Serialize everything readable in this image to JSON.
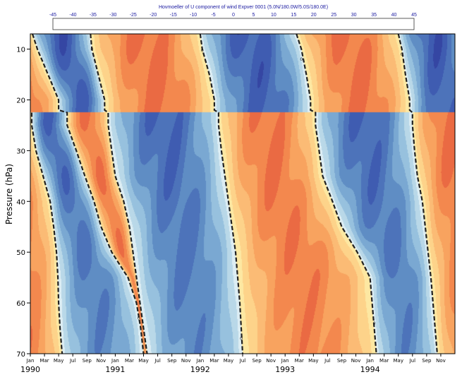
{
  "chart_data": {
    "type": "heatmap",
    "title": "Hovmoeller of U component of wind Expver 0001 (5.0N/180.0W/5.0S/180.0E)",
    "ylabel": "Pressure (hPa)",
    "xlabel": "",
    "ylim": [
      7,
      70
    ],
    "y_reversed": true,
    "y_ticks": [
      10,
      20,
      30,
      40,
      50,
      60,
      70
    ],
    "month_labels": [
      "Jan",
      "Mar",
      "May",
      "Jul",
      "Sep",
      "Nov",
      "Jan",
      "Mar",
      "May",
      "Jul",
      "Sep",
      "Nov",
      "Jan",
      "Mar",
      "May",
      "Jul",
      "Sep",
      "Nov",
      "Jan",
      "Mar",
      "May",
      "Jul",
      "Sep",
      "Nov",
      "Jan",
      "Mar",
      "May",
      "Jul",
      "Sep",
      "Nov"
    ],
    "year_labels": [
      "1990",
      "1991",
      "1992",
      "1993",
      "1994"
    ],
    "colorbar": {
      "ticks": [
        -45,
        -40,
        -35,
        -30,
        -25,
        -20,
        -15,
        -10,
        -5,
        0,
        5,
        10,
        15,
        20,
        25,
        30,
        35,
        40,
        45
      ],
      "colors": [
        "#2a3593",
        "#3546a3",
        "#3f5cb1",
        "#4d73ba",
        "#5f8dc4",
        "#7aa8d2",
        "#97c1de",
        "#b9d8e8",
        "#dcedf3",
        "#fde8a2",
        "#fdd38a",
        "#fbbb75",
        "#f8a35f",
        "#f3884e",
        "#ea6a43",
        "#dc4c3a",
        "#c62f33",
        "#a8102f"
      ]
    },
    "zero_contour_label": "0",
    "time_start": "1990-01",
    "time_end": "1994-12",
    "zero_crossings": [
      {
        "p": 7,
        "eq": [
          0.3,
          8.5,
          24.0,
          37.6,
          52.0
        ]
      },
      {
        "p": 10,
        "eq": [
          1.0,
          8.7,
          24.3,
          38.3,
          52.5
        ]
      },
      {
        "p": 15,
        "eq": [
          2.5,
          9.6,
          25.3,
          39.0,
          53.0
        ]
      },
      {
        "p": 20,
        "eq": [
          4.0,
          10.5,
          26.0,
          39.6,
          53.6
        ]
      },
      {
        "p": 25,
        "eq": [
          0.2,
          5.2,
          11.0,
          26.6,
          40.3,
          54.0
        ]
      },
      {
        "p": 30,
        "eq": [
          0.8,
          6.5,
          11.5,
          27.0,
          40.8,
          54.3
        ]
      },
      {
        "p": 35,
        "eq": [
          1.8,
          7.7,
          12.0,
          27.5,
          41.3,
          54.7
        ]
      },
      {
        "p": 40,
        "eq": [
          2.8,
          9.0,
          13.2,
          28.0,
          42.7,
          55.4
        ]
      },
      {
        "p": 45,
        "eq": [
          3.3,
          10.0,
          14.0,
          28.5,
          44.0,
          55.8
        ]
      },
      {
        "p": 50,
        "eq": [
          3.7,
          11.5,
          14.5,
          29.0,
          46.2,
          56.2
        ]
      },
      {
        "p": 55,
        "eq": [
          3.9,
          13.8,
          15.0,
          29.3,
          48.0,
          56.6
        ]
      },
      {
        "p": 60,
        "eq": [
          4.0,
          15.0,
          15.5,
          29.6,
          48.3,
          56.9
        ]
      },
      {
        "p": 65,
        "eq": [
          4.2,
          15.6,
          16.0,
          29.8,
          48.6,
          57.2
        ]
      },
      {
        "p": 70,
        "eq": [
          4.5,
          16.0,
          16.5,
          30.0,
          48.9,
          57.5
        ]
      }
    ]
  }
}
